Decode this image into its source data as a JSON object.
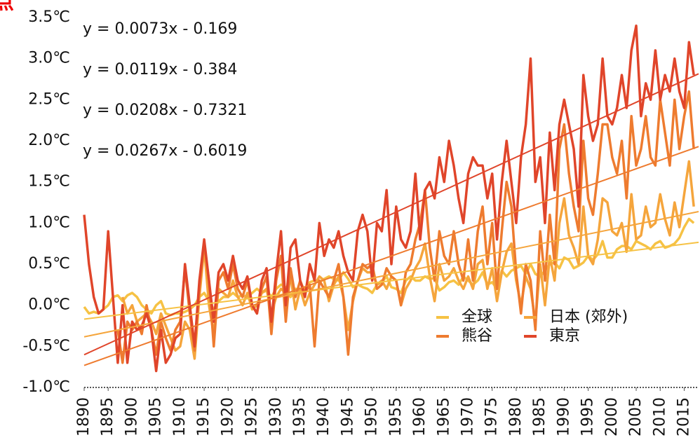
{
  "chart_data": {
    "type": "line",
    "title": "点",
    "x": [
      1890,
      1891,
      1892,
      1893,
      1894,
      1895,
      1896,
      1897,
      1898,
      1899,
      1900,
      1901,
      1902,
      1903,
      1904,
      1905,
      1906,
      1907,
      1908,
      1909,
      1910,
      1911,
      1912,
      1913,
      1914,
      1915,
      1916,
      1917,
      1918,
      1919,
      1920,
      1921,
      1922,
      1923,
      1924,
      1925,
      1926,
      1927,
      1928,
      1929,
      1930,
      1931,
      1932,
      1933,
      1934,
      1935,
      1936,
      1937,
      1938,
      1939,
      1940,
      1941,
      1942,
      1943,
      1944,
      1945,
      1946,
      1947,
      1948,
      1949,
      1950,
      1951,
      1952,
      1953,
      1954,
      1955,
      1956,
      1957,
      1958,
      1959,
      1960,
      1961,
      1962,
      1963,
      1964,
      1965,
      1966,
      1967,
      1968,
      1969,
      1970,
      1971,
      1972,
      1973,
      1974,
      1975,
      1976,
      1977,
      1978,
      1979,
      1980,
      1981,
      1982,
      1983,
      1984,
      1985,
      1986,
      1987,
      1988,
      1989,
      1990,
      1991,
      1992,
      1993,
      1994,
      1995,
      1996,
      1997,
      1998,
      1999,
      2000,
      2001,
      2002,
      2003,
      2004,
      2005,
      2006,
      2007,
      2008,
      2009,
      2010,
      2011,
      2012,
      2013,
      2014,
      2015,
      2016,
      2017
    ],
    "series": [
      {
        "name": "全球",
        "color": "#f6c244",
        "trend": {
          "label": "y = 0.0073x - 0.169",
          "slope": 0.0073,
          "intercept": -0.169
        },
        "values": [
          -0.02,
          -0.1,
          -0.08,
          -0.1,
          -0.05,
          0.0,
          0.1,
          0.12,
          0.05,
          0.12,
          0.15,
          0.1,
          0.0,
          -0.05,
          -0.1,
          0.0,
          0.05,
          -0.1,
          -0.12,
          -0.1,
          -0.1,
          -0.08,
          -0.05,
          0.0,
          0.1,
          0.15,
          0.05,
          -0.05,
          0.05,
          0.1,
          0.1,
          0.15,
          0.1,
          0.12,
          0.1,
          0.15,
          0.2,
          0.15,
          0.18,
          0.1,
          0.2,
          0.25,
          0.22,
          0.1,
          0.2,
          0.18,
          0.2,
          0.28,
          0.3,
          0.28,
          0.32,
          0.35,
          0.32,
          0.3,
          0.4,
          0.32,
          0.22,
          0.25,
          0.22,
          0.2,
          0.15,
          0.25,
          0.28,
          0.35,
          0.22,
          0.2,
          0.15,
          0.3,
          0.35,
          0.3,
          0.3,
          0.35,
          0.32,
          0.33,
          0.18,
          0.22,
          0.28,
          0.3,
          0.25,
          0.35,
          0.3,
          0.25,
          0.3,
          0.4,
          0.25,
          0.28,
          0.2,
          0.42,
          0.35,
          0.42,
          0.45,
          0.48,
          0.38,
          0.5,
          0.38,
          0.35,
          0.42,
          0.5,
          0.52,
          0.45,
          0.58,
          0.55,
          0.45,
          0.48,
          0.52,
          0.6,
          0.55,
          0.62,
          0.78,
          0.58,
          0.58,
          0.68,
          0.72,
          0.72,
          0.68,
          0.78,
          0.75,
          0.72,
          0.68,
          0.75,
          0.78,
          0.7,
          0.72,
          0.75,
          0.82,
          0.95,
          1.05,
          1.0
        ]
      },
      {
        "name": "日本 (郊外)",
        "color": "#f5a53c",
        "trend": {
          "label": "y = 0.0119x - 0.384",
          "slope": 0.0119,
          "intercept": -0.384
        },
        "values": [
          null,
          null,
          null,
          null,
          null,
          null,
          null,
          null,
          0.1,
          -0.1,
          0.0,
          -0.2,
          -0.15,
          -0.1,
          -0.2,
          -0.35,
          -0.1,
          -0.25,
          -0.4,
          -0.55,
          -0.5,
          -0.2,
          -0.3,
          -0.65,
          0.1,
          0.7,
          0.0,
          -0.35,
          0.2,
          0.15,
          0.1,
          0.3,
          0.1,
          0.0,
          0.15,
          -0.05,
          0.0,
          0.15,
          0.2,
          -0.1,
          0.1,
          0.2,
          0.15,
          0.35,
          -0.05,
          0.2,
          0.0,
          0.15,
          0.25,
          0.35,
          0.3,
          0.05,
          0.25,
          0.35,
          0.1,
          -0.3,
          0.05,
          0.3,
          0.45,
          0.4,
          0.4,
          0.25,
          0.3,
          0.2,
          0.35,
          0.3,
          0.0,
          0.2,
          0.3,
          0.45,
          0.55,
          0.75,
          0.35,
          0.05,
          0.5,
          0.3,
          0.35,
          0.45,
          0.3,
          0.2,
          0.35,
          0.2,
          0.5,
          0.55,
          0.2,
          0.45,
          0.05,
          0.4,
          0.65,
          0.75,
          0.3,
          0.0,
          0.35,
          0.2,
          -0.2,
          0.5,
          0.0,
          0.6,
          0.3,
          1.0,
          1.3,
          0.85,
          0.7,
          0.5,
          1.2,
          0.6,
          0.5,
          0.8,
          1.3,
          1.25,
          0.9,
          0.85,
          1.0,
          0.65,
          1.35,
          0.8,
          0.85,
          1.2,
          0.95,
          1.0,
          1.35,
          1.05,
          0.85,
          1.25,
          0.95,
          1.35,
          1.75,
          1.2
        ]
      },
      {
        "name": "熊谷",
        "color": "#ee7b2f",
        "trend": {
          "label": "y = 0.0208x - 0.7321",
          "slope": 0.0208,
          "intercept": -0.7321
        },
        "values": [
          null,
          null,
          null,
          null,
          null,
          null,
          null,
          -0.3,
          -0.7,
          -0.2,
          -0.3,
          -0.2,
          -0.35,
          0.0,
          -0.3,
          -0.6,
          -0.2,
          -0.4,
          -0.55,
          -0.3,
          -0.2,
          0.45,
          -0.1,
          -0.55,
          0.2,
          0.75,
          0.3,
          -0.5,
          0.3,
          0.4,
          0.2,
          0.5,
          0.2,
          0.1,
          0.3,
          0.0,
          -0.1,
          0.2,
          0.35,
          -0.35,
          0.3,
          0.6,
          -0.2,
          0.45,
          0.1,
          0.3,
          0.15,
          0.25,
          -0.5,
          0.3,
          0.2,
          0.1,
          0.3,
          0.5,
          0.1,
          -0.6,
          0.1,
          0.3,
          0.5,
          0.45,
          0.5,
          0.2,
          0.25,
          0.45,
          0.35,
          0.3,
          0.0,
          0.4,
          0.5,
          0.8,
          1.0,
          1.4,
          0.7,
          0.3,
          0.9,
          0.6,
          0.5,
          0.9,
          0.5,
          0.3,
          0.8,
          0.3,
          0.9,
          1.2,
          0.5,
          1.0,
          0.2,
          0.9,
          1.5,
          1.2,
          0.4,
          -0.1,
          0.5,
          0.3,
          -0.3,
          0.9,
          0.3,
          1.1,
          0.5,
          1.9,
          2.2,
          1.6,
          1.2,
          0.9,
          2.0,
          1.3,
          1.1,
          1.6,
          2.2,
          2.2,
          1.8,
          1.6,
          2.0,
          1.3,
          2.3,
          1.7,
          1.9,
          2.3,
          1.8,
          1.7,
          2.5,
          2.1,
          1.7,
          2.5,
          1.9,
          2.3,
          2.6,
          1.9
        ]
      },
      {
        "name": "東京",
        "color": "#e0452a",
        "trend": {
          "label": "y = 0.0267x - 0.6019",
          "slope": 0.0267,
          "intercept": -0.6019
        },
        "values": [
          1.1,
          0.5,
          0.1,
          -0.1,
          -0.05,
          0.9,
          0.1,
          -0.7,
          0.0,
          -0.7,
          -0.2,
          -0.3,
          -0.25,
          -0.1,
          -0.3,
          -0.8,
          -0.3,
          -0.7,
          -0.6,
          -0.4,
          -0.35,
          0.5,
          0.0,
          -0.5,
          0.3,
          0.8,
          0.3,
          -0.2,
          0.4,
          0.5,
          0.3,
          0.6,
          0.3,
          0.2,
          0.35,
          0.0,
          -0.1,
          0.3,
          0.45,
          -0.2,
          0.4,
          0.9,
          0.0,
          0.7,
          0.8,
          0.3,
          0.1,
          0.5,
          0.3,
          1.0,
          0.6,
          0.8,
          0.7,
          0.9,
          0.6,
          0.4,
          0.3,
          0.9,
          1.1,
          0.9,
          0.3,
          1.0,
          0.9,
          1.4,
          0.5,
          1.2,
          0.8,
          0.7,
          0.9,
          1.6,
          0.8,
          1.4,
          1.5,
          1.3,
          1.8,
          1.5,
          2.0,
          1.7,
          1.3,
          1.0,
          1.6,
          1.8,
          1.7,
          1.7,
          1.3,
          1.6,
          0.8,
          1.5,
          2.0,
          1.5,
          1.0,
          1.8,
          2.2,
          3.0,
          1.5,
          1.8,
          1.0,
          2.1,
          1.4,
          2.2,
          2.5,
          2.2,
          1.9,
          1.2,
          2.8,
          2.3,
          2.0,
          2.2,
          3.0,
          2.3,
          2.2,
          2.4,
          2.8,
          2.4,
          3.1,
          3.4,
          2.3,
          2.7,
          2.5,
          3.1,
          2.5,
          2.8,
          2.6,
          3.0,
          2.6,
          2.4,
          3.2,
          2.8
        ]
      }
    ],
    "xlim": [
      1890,
      2018
    ],
    "xticks": [
      1890,
      1895,
      1900,
      1905,
      1910,
      1915,
      1920,
      1925,
      1930,
      1935,
      1940,
      1945,
      1950,
      1955,
      1960,
      1965,
      1970,
      1975,
      1980,
      1985,
      1990,
      1995,
      2000,
      2005,
      2010,
      2015
    ],
    "ylim": [
      -1,
      3.5
    ],
    "yticks": [
      {
        "value": -1,
        "label": "-1.0℃"
      },
      {
        "value": -0.5,
        "label": "-0.5℃"
      },
      {
        "value": 0,
        "label": "0.0℃"
      },
      {
        "value": 0.5,
        "label": "0.5℃"
      },
      {
        "value": 1,
        "label": "1.0℃"
      },
      {
        "value": 1.5,
        "label": "1.5℃"
      },
      {
        "value": 2,
        "label": "2.0℃"
      },
      {
        "value": 2.5,
        "label": "2.5℃"
      },
      {
        "value": 3,
        "label": "3.0℃"
      },
      {
        "value": 3.5,
        "label": "3.5℃"
      }
    ],
    "grid": false,
    "legend_position": "lower right"
  }
}
